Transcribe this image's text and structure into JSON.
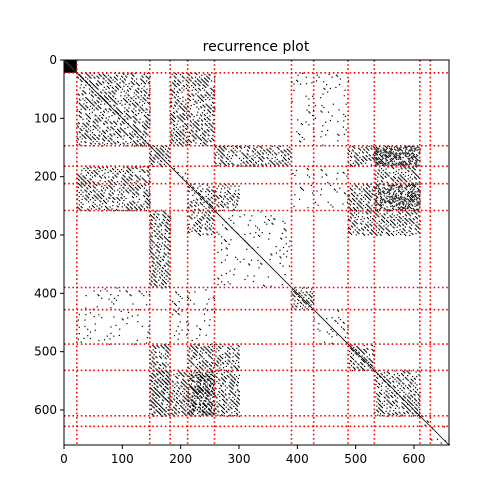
{
  "chart_data": {
    "type": "heatmap",
    "title": "recurrence plot",
    "xlabel": "",
    "ylabel": "",
    "xlim": [
      0,
      660
    ],
    "ylim": [
      660,
      0
    ],
    "x_ticks": [
      0,
      100,
      200,
      300,
      400,
      500,
      600
    ],
    "y_ticks": [
      0,
      100,
      200,
      300,
      400,
      500,
      600
    ],
    "x_tick_labels": [
      "0",
      "100",
      "200",
      "300",
      "400",
      "500",
      "600"
    ],
    "y_tick_labels": [
      "0",
      "100",
      "200",
      "300",
      "400",
      "500",
      "600"
    ],
    "grid": false,
    "colors": {
      "recurrence": "#000000",
      "boundary_lines": "#ff0000",
      "background": "#ffffff"
    },
    "segment_boundaries": [
      22,
      147,
      182,
      212,
      258,
      390,
      428,
      487,
      532,
      610,
      628
    ],
    "recurrence_blocks": [
      {
        "x": [
          0,
          22
        ],
        "y": [
          0,
          22
        ],
        "pattern": "solid"
      },
      {
        "x": [
          22,
          147
        ],
        "y": [
          22,
          147
        ],
        "pattern": "diagonal"
      },
      {
        "x": [
          147,
          182
        ],
        "y": [
          147,
          182
        ],
        "pattern": "diagonal"
      },
      {
        "x": [
          182,
          212
        ],
        "y": [
          182,
          212
        ],
        "pattern": "sparse"
      },
      {
        "x": [
          212,
          258
        ],
        "y": [
          212,
          258
        ],
        "pattern": "diagonal"
      },
      {
        "x": [
          258,
          390
        ],
        "y": [
          258,
          390
        ],
        "pattern": "sparse"
      },
      {
        "x": [
          390,
          428
        ],
        "y": [
          390,
          428
        ],
        "pattern": "diagonal"
      },
      {
        "x": [
          428,
          487
        ],
        "y": [
          428,
          487
        ],
        "pattern": "sparse"
      },
      {
        "x": [
          487,
          532
        ],
        "y": [
          487,
          532
        ],
        "pattern": "diagonal"
      },
      {
        "x": [
          532,
          610
        ],
        "y": [
          532,
          610
        ],
        "pattern": "diagonal"
      },
      {
        "x": [
          610,
          628
        ],
        "y": [
          610,
          628
        ],
        "pattern": "sparse"
      },
      {
        "x": [
          628,
          660
        ],
        "y": [
          628,
          660
        ],
        "pattern": "sparse"
      },
      {
        "x": [
          22,
          147
        ],
        "y": [
          182,
          258
        ],
        "pattern": "diagonal"
      },
      {
        "x": [
          182,
          258
        ],
        "y": [
          22,
          147
        ],
        "pattern": "diagonal"
      },
      {
        "x": [
          22,
          147
        ],
        "y": [
          390,
          487
        ],
        "pattern": "sparse"
      },
      {
        "x": [
          390,
          487
        ],
        "y": [
          22,
          147
        ],
        "pattern": "sparse"
      },
      {
        "x": [
          182,
          258
        ],
        "y": [
          390,
          487
        ],
        "pattern": "sparse"
      },
      {
        "x": [
          390,
          487
        ],
        "y": [
          182,
          258
        ],
        "pattern": "sparse"
      },
      {
        "x": [
          147,
          182
        ],
        "y": [
          258,
          390
        ],
        "pattern": "diagonal"
      },
      {
        "x": [
          258,
          390
        ],
        "y": [
          147,
          182
        ],
        "pattern": "diagonal"
      },
      {
        "x": [
          147,
          182
        ],
        "y": [
          487,
          610
        ],
        "pattern": "diagonal"
      },
      {
        "x": [
          487,
          610
        ],
        "y": [
          147,
          182
        ],
        "pattern": "diagonal"
      },
      {
        "x": [
          212,
          258
        ],
        "y": [
          258,
          300
        ],
        "pattern": "diagonal"
      },
      {
        "x": [
          258,
          300
        ],
        "y": [
          212,
          258
        ],
        "pattern": "diagonal"
      },
      {
        "x": [
          258,
          300
        ],
        "y": [
          487,
          610
        ],
        "pattern": "diagonal"
      },
      {
        "x": [
          487,
          610
        ],
        "y": [
          258,
          300
        ],
        "pattern": "diagonal"
      },
      {
        "x": [
          212,
          258
        ],
        "y": [
          487,
          610
        ],
        "pattern": "diagonal"
      },
      {
        "x": [
          487,
          610
        ],
        "y": [
          212,
          258
        ],
        "pattern": "diagonal"
      },
      {
        "x": [
          532,
          610
        ],
        "y": [
          147,
          258
        ],
        "pattern": "diagonal"
      },
      {
        "x": [
          147,
          258
        ],
        "y": [
          532,
          610
        ],
        "pattern": "diagonal"
      }
    ]
  }
}
